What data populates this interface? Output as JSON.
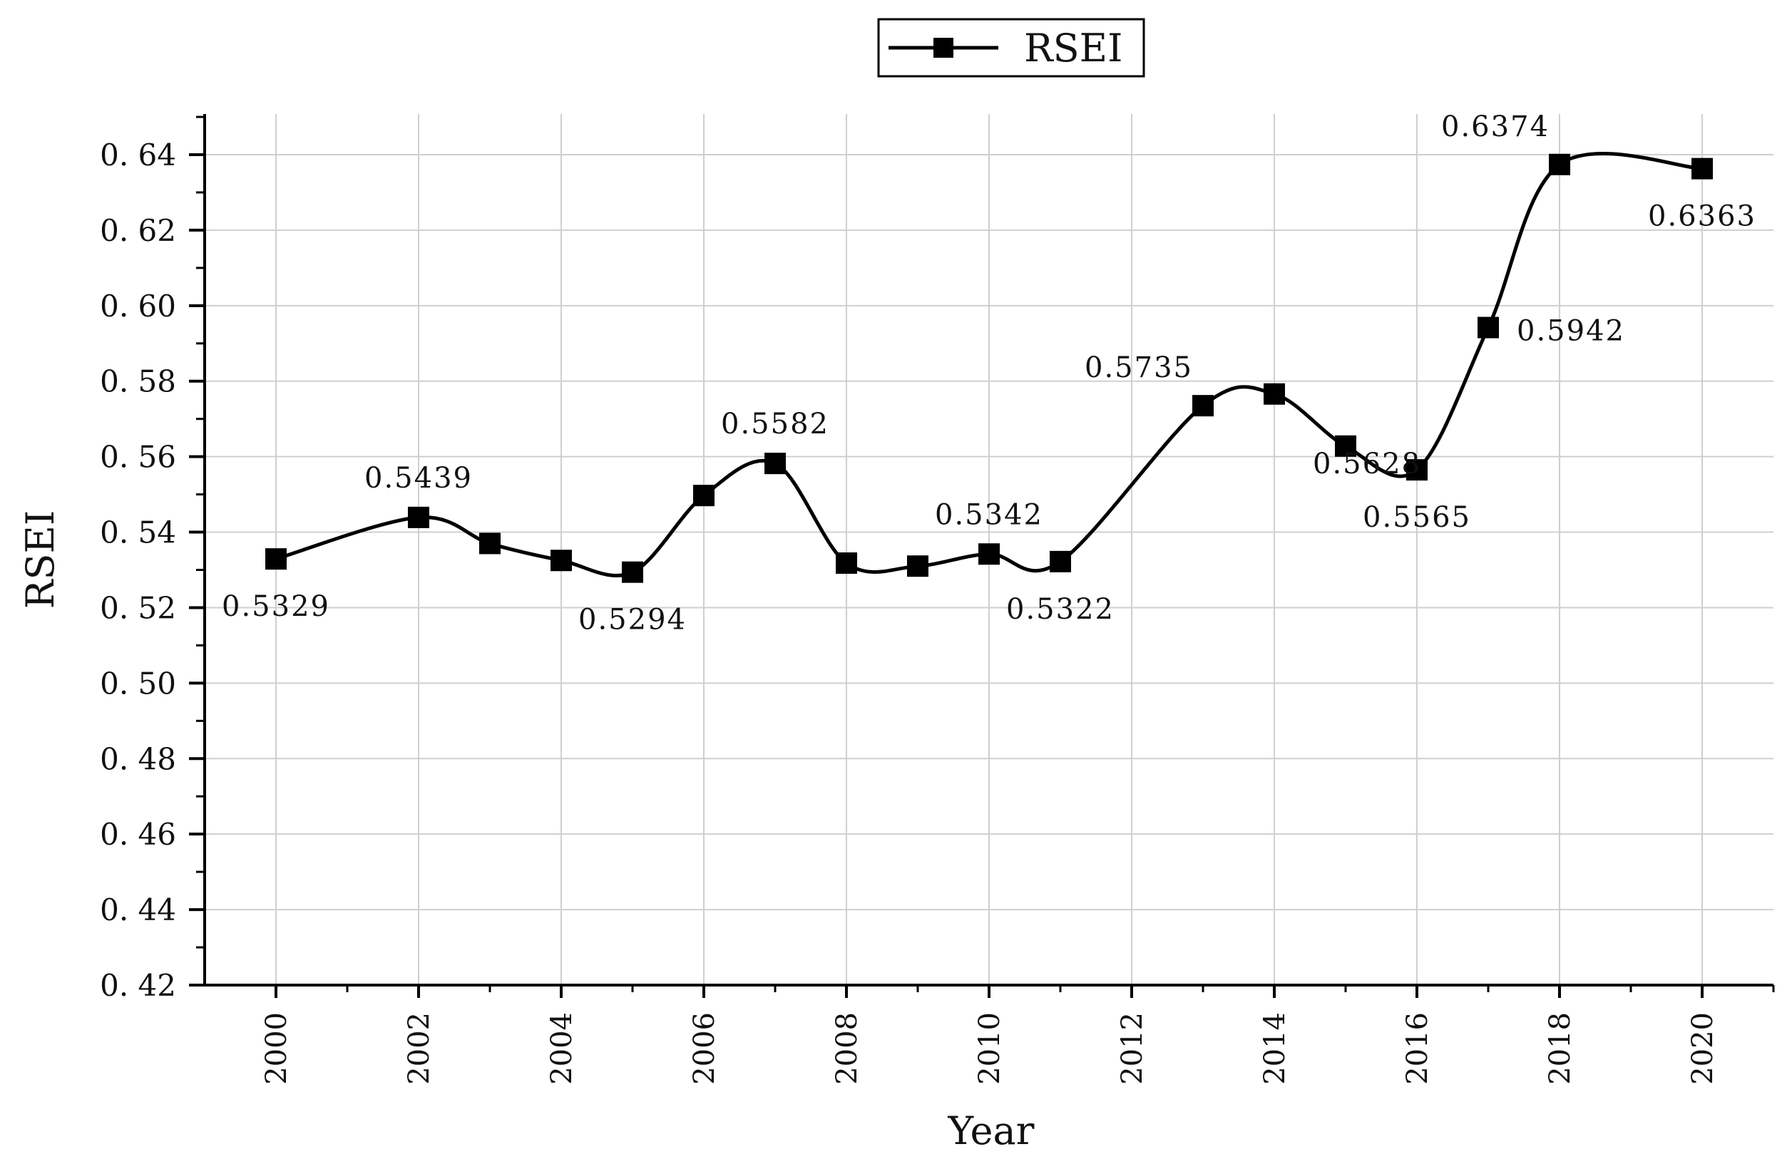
{
  "chart_data": {
    "type": "line",
    "xlabel": "Year",
    "ylabel": "RSEI",
    "ylim": [
      0.42,
      0.65
    ],
    "xlim": [
      1999,
      2021
    ],
    "y_ticks": [
      "0. 42",
      "0. 44",
      "0. 46",
      "0. 48",
      "0. 50",
      "0. 52",
      "0. 54",
      "0. 56",
      "0. 58",
      "0. 60",
      "0. 62",
      "0. 64"
    ],
    "x_ticks": [
      "2000",
      "2002",
      "2004",
      "2006",
      "2008",
      "2010",
      "2012",
      "2014",
      "2016",
      "2018",
      "2020"
    ],
    "grid": true,
    "legend_position": "top-center",
    "series": [
      {
        "name": "RSEI",
        "color": "#000000",
        "marker": "square",
        "x": [
          2000,
          2002,
          2003,
          2004,
          2005,
          2006,
          2007,
          2008,
          2009,
          2010,
          2011,
          2013,
          2014,
          2015,
          2016,
          2017,
          2018,
          2020
        ],
        "values": [
          0.5329,
          0.5439,
          0.537,
          0.5325,
          0.5294,
          0.5497,
          0.5582,
          0.5318,
          0.531,
          0.5342,
          0.5322,
          0.5735,
          0.5766,
          0.5628,
          0.5565,
          0.5942,
          0.6374,
          0.6363
        ]
      }
    ],
    "annotations": [
      {
        "text": "0.5329",
        "x": 2000,
        "y": 0.5329,
        "pos": "below"
      },
      {
        "text": "0.5439",
        "x": 2002,
        "y": 0.5439,
        "pos": "above"
      },
      {
        "text": "0.5294",
        "x": 2005,
        "y": 0.5294,
        "pos": "below"
      },
      {
        "text": "0.5582",
        "x": 2007,
        "y": 0.5582,
        "pos": "above"
      },
      {
        "text": "0.5342",
        "x": 2010,
        "y": 0.5342,
        "pos": "above"
      },
      {
        "text": "0.5322",
        "x": 2011,
        "y": 0.5322,
        "pos": "below"
      },
      {
        "text": "0.5735",
        "x": 2013,
        "y": 0.5735,
        "pos": "above-left"
      },
      {
        "text": "0.5628",
        "x": 2015,
        "y": 0.5628,
        "pos": "below-left"
      },
      {
        "text": "0.5565",
        "x": 2016,
        "y": 0.5565,
        "pos": "below"
      },
      {
        "text": "0.5942",
        "x": 2017,
        "y": 0.5942,
        "pos": "right"
      },
      {
        "text": "0.6374",
        "x": 2018,
        "y": 0.6374,
        "pos": "above-left"
      },
      {
        "text": "0.6363",
        "x": 2020,
        "y": 0.6363,
        "pos": "below"
      }
    ]
  }
}
